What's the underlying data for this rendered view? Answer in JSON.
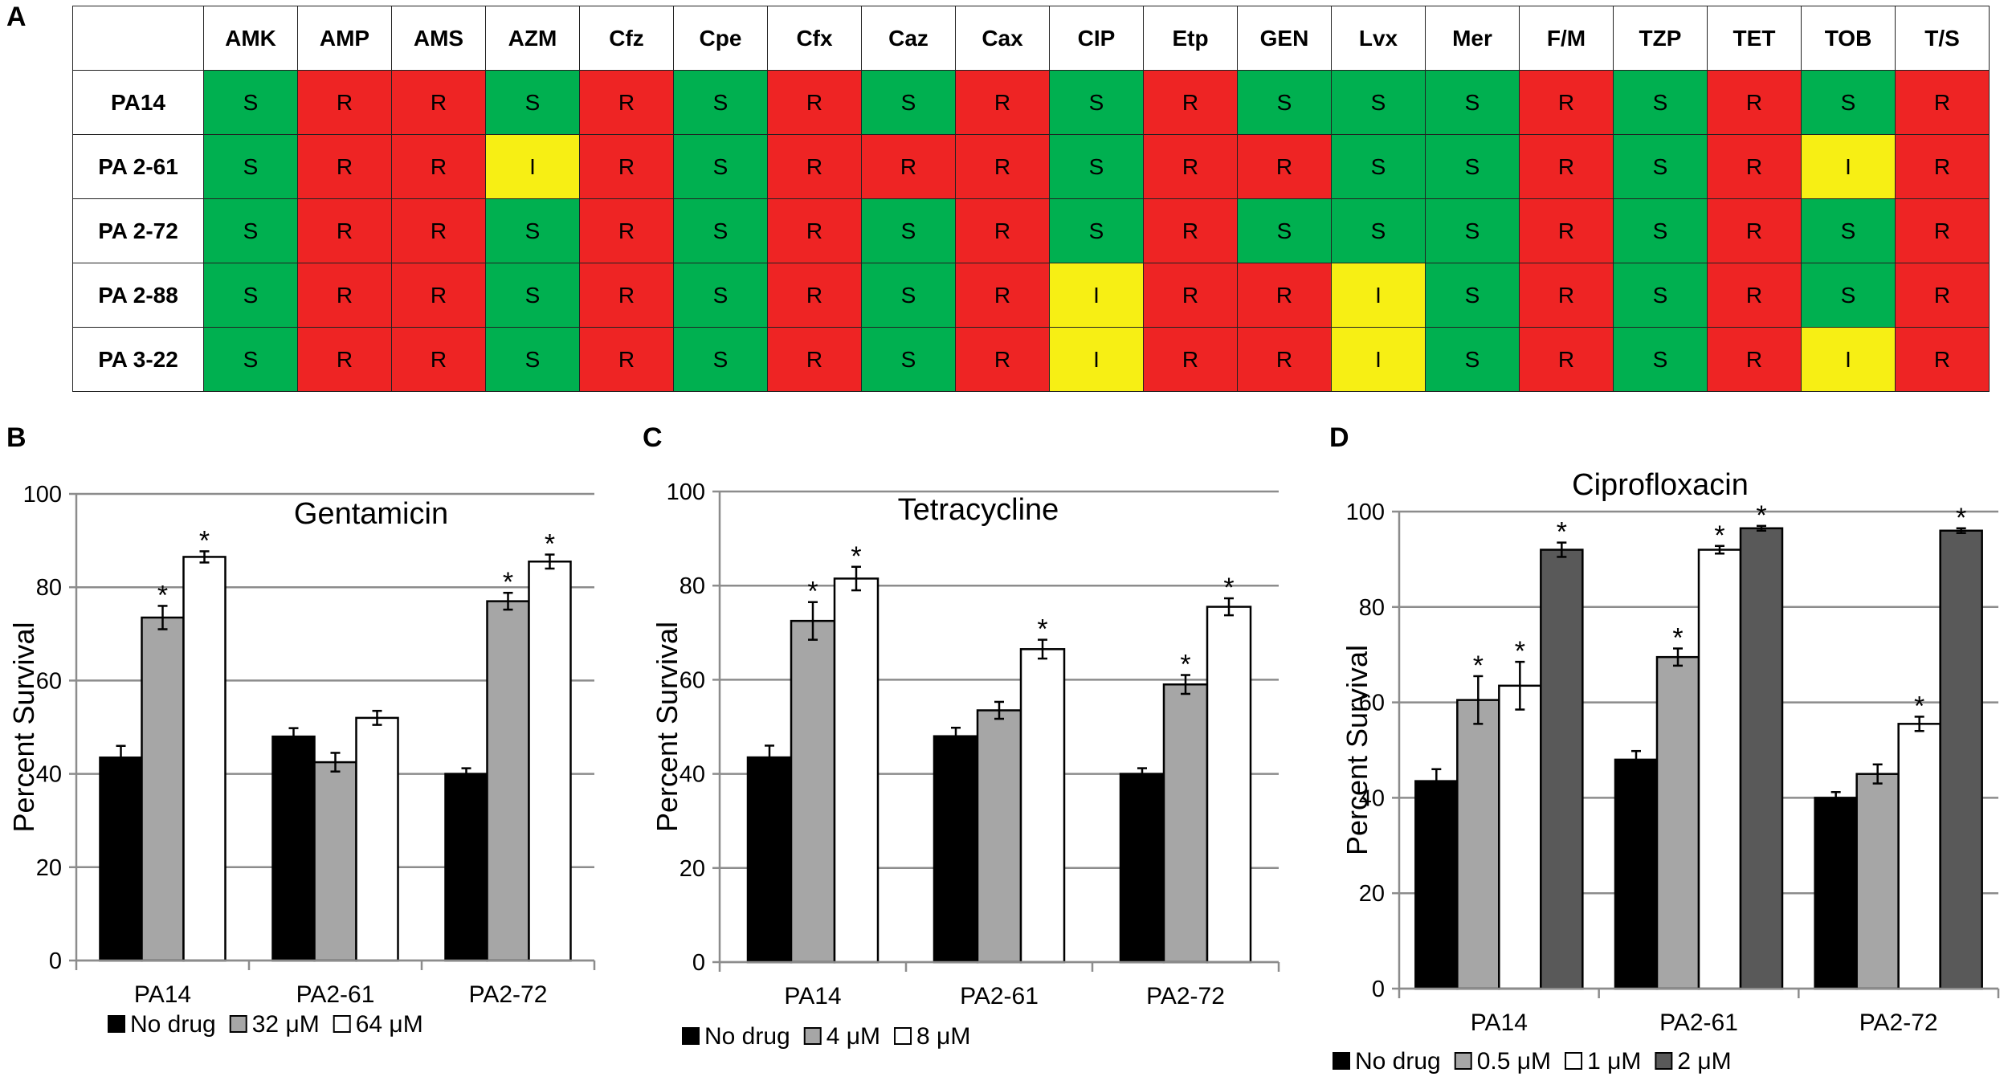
{
  "panel_labels": {
    "a": "A",
    "b": "B",
    "c": "C",
    "d": "D"
  },
  "colors": {
    "S": "#00b050",
    "R": "#ee2424",
    "I": "#f7ef14",
    "grid": "#8c8c8c"
  },
  "table": {
    "columns": [
      "AMK",
      "AMP",
      "AMS",
      "AZM",
      "Cfz",
      "Cpe",
      "Cfx",
      "Caz",
      "Cax",
      "CIP",
      "Etp",
      "GEN",
      "Lvx",
      "Mer",
      "F/M",
      "TZP",
      "TET",
      "TOB",
      "T/S"
    ],
    "rows": [
      {
        "label": "PA14",
        "values": [
          "S",
          "R",
          "R",
          "S",
          "R",
          "S",
          "R",
          "S",
          "R",
          "S",
          "R",
          "S",
          "S",
          "S",
          "R",
          "S",
          "R",
          "S",
          "R"
        ]
      },
      {
        "label": "PA 2-61",
        "values": [
          "S",
          "R",
          "R",
          "I",
          "R",
          "S",
          "R",
          "R",
          "R",
          "S",
          "R",
          "R",
          "S",
          "S",
          "R",
          "S",
          "R",
          "I",
          "R"
        ]
      },
      {
        "label": "PA 2-72",
        "values": [
          "S",
          "R",
          "R",
          "S",
          "R",
          "S",
          "R",
          "S",
          "R",
          "S",
          "R",
          "S",
          "S",
          "S",
          "R",
          "S",
          "R",
          "S",
          "R"
        ]
      },
      {
        "label": "PA 2-88",
        "values": [
          "S",
          "R",
          "R",
          "S",
          "R",
          "S",
          "R",
          "S",
          "R",
          "I",
          "R",
          "R",
          "I",
          "S",
          "R",
          "S",
          "R",
          "S",
          "R"
        ]
      },
      {
        "label": "PA 3-22",
        "values": [
          "S",
          "R",
          "R",
          "S",
          "R",
          "S",
          "R",
          "S",
          "R",
          "I",
          "R",
          "R",
          "I",
          "S",
          "R",
          "S",
          "R",
          "I",
          "R"
        ]
      }
    ]
  },
  "chart_data": [
    {
      "type": "bar",
      "title": "Gentamicin",
      "xlabel": "",
      "ylabel": "Percent Survival",
      "ylim": [
        0,
        100
      ],
      "yticks": [
        0,
        20,
        40,
        60,
        80,
        100
      ],
      "categories": [
        "PA14",
        "PA2-61",
        "PA2-72"
      ],
      "series": [
        {
          "name": "No drug",
          "color": "#000000",
          "values": [
            43.5,
            48,
            40
          ],
          "errors": [
            2.5,
            1.8,
            1.2
          ],
          "sig": [
            false,
            false,
            false
          ]
        },
        {
          "name": "32 μM",
          "color": "#a6a6a6",
          "values": [
            73.5,
            42.5,
            77
          ],
          "errors": [
            2.5,
            2.0,
            1.8
          ],
          "sig": [
            true,
            false,
            true
          ]
        },
        {
          "name": "64 μM",
          "color": "#ffffff",
          "values": [
            86.5,
            52,
            85.5
          ],
          "errors": [
            1.2,
            1.5,
            1.5
          ],
          "sig": [
            true,
            false,
            true
          ]
        }
      ],
      "sig_marker": "*"
    },
    {
      "type": "bar",
      "title": "Tetracycline",
      "xlabel": "",
      "ylabel": "Percent Survival",
      "ylim": [
        0,
        100
      ],
      "yticks": [
        0,
        20,
        40,
        60,
        80,
        100
      ],
      "categories": [
        "PA14",
        "PA2-61",
        "PA2-72"
      ],
      "series": [
        {
          "name": "No drug",
          "color": "#000000",
          "values": [
            43.5,
            48,
            40
          ],
          "errors": [
            2.5,
            1.8,
            1.2
          ],
          "sig": [
            false,
            false,
            false
          ]
        },
        {
          "name": "4 μM",
          "color": "#a6a6a6",
          "values": [
            72.5,
            53.5,
            59
          ],
          "errors": [
            4.0,
            1.8,
            2.0
          ],
          "sig": [
            true,
            false,
            true
          ]
        },
        {
          "name": "8 μM",
          "color": "#ffffff",
          "values": [
            81.5,
            66.5,
            75.5
          ],
          "errors": [
            2.5,
            2.0,
            1.8
          ],
          "sig": [
            true,
            true,
            true
          ]
        }
      ],
      "sig_marker": "*"
    },
    {
      "type": "bar",
      "title": "Ciprofloxacin",
      "xlabel": "",
      "ylabel": "Percent Survival",
      "ylim": [
        0,
        100
      ],
      "yticks": [
        0,
        20,
        40,
        60,
        80,
        100
      ],
      "categories": [
        "PA14",
        "PA2-61",
        "PA2-72"
      ],
      "series": [
        {
          "name": "No drug",
          "color": "#000000",
          "values": [
            43.5,
            48,
            40
          ],
          "errors": [
            2.5,
            1.8,
            1.2
          ],
          "sig": [
            false,
            false,
            false
          ]
        },
        {
          "name": "0.5 μM",
          "color": "#a6a6a6",
          "values": [
            60.5,
            69.5,
            45
          ],
          "errors": [
            5.0,
            1.8,
            2.0
          ],
          "sig": [
            true,
            true,
            false
          ]
        },
        {
          "name": "1 μM",
          "color": "#ffffff",
          "values": [
            63.5,
            92,
            55.5
          ],
          "errors": [
            5.0,
            0.8,
            1.5
          ],
          "sig": [
            true,
            true,
            true
          ]
        },
        {
          "name": "2 μM",
          "color": "#595959",
          "values": [
            92,
            96.5,
            96
          ],
          "errors": [
            1.5,
            0.5,
            0.5
          ],
          "sig": [
            true,
            true,
            true
          ]
        }
      ],
      "sig_marker": "*"
    }
  ]
}
